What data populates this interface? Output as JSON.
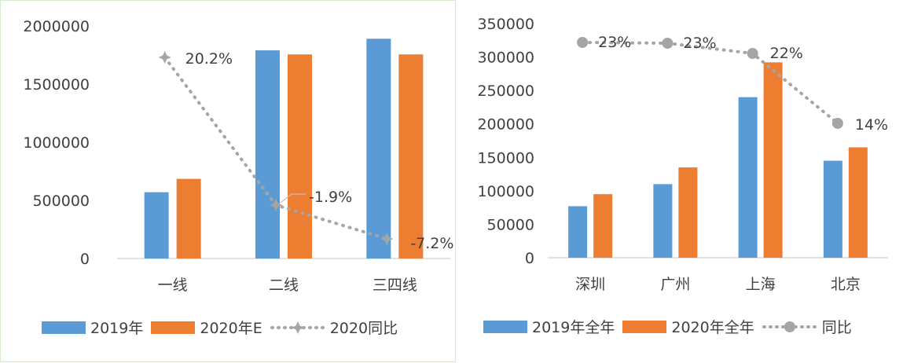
{
  "chart_data": [
    {
      "type": "bar",
      "categories": [
        "一线",
        "二线",
        "三四线"
      ],
      "series": [
        {
          "name": "2019年",
          "values": [
            570000,
            1790000,
            1890000
          ],
          "color": "#5b9bd5"
        },
        {
          "name": "2020年E",
          "values": [
            685000,
            1755000,
            1755000
          ],
          "color": "#ed7d31"
        }
      ],
      "line": {
        "name": "2020同比",
        "values": [
          20.2,
          -1.9,
          -7.2
        ],
        "labels": [
          "20.2%",
          "-1.9%",
          "-7.2%"
        ],
        "color": "#a5a5a5"
      },
      "yticks": [
        "2000000",
        "1500000",
        "1000000",
        "500000",
        "0"
      ],
      "ylim": [
        0,
        2000000
      ]
    },
    {
      "type": "bar",
      "categories": [
        "深圳",
        "广州",
        "上海",
        "北京"
      ],
      "series": [
        {
          "name": "2019年全年",
          "values": [
            77000,
            110000,
            240000,
            145000
          ],
          "color": "#5b9bd5"
        },
        {
          "name": "2020年全年",
          "values": [
            95000,
            135000,
            292000,
            165000
          ],
          "color": "#ed7d31"
        }
      ],
      "line": {
        "name": "同比",
        "values": [
          23,
          23,
          22,
          14
        ],
        "labels": [
          "23%",
          "23%",
          "22%",
          "14%"
        ],
        "color": "#a5a5a5"
      },
      "yticks": [
        "350000",
        "300000",
        "250000",
        "200000",
        "150000",
        "100000",
        "50000",
        "0"
      ],
      "ylim": [
        0,
        350000
      ]
    }
  ]
}
